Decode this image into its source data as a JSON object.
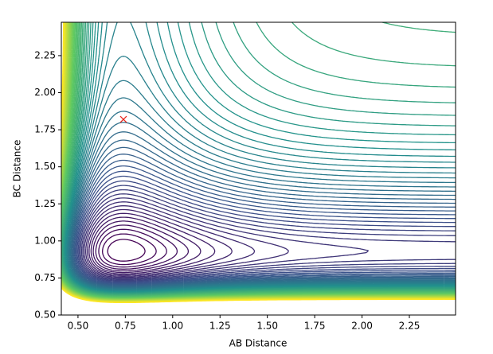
{
  "chart_data": {
    "type": "contour",
    "x_label": "AB Distance",
    "y_label": "BC Distance",
    "xlim": [
      0.412,
      2.494
    ],
    "ylim": [
      0.5,
      2.475
    ],
    "xticks": [
      {
        "value": 0.5,
        "label": "0.50"
      },
      0.75,
      {
        "value": 1.0,
        "label": "1.00"
      },
      1.25,
      {
        "value": 1.5,
        "label": "1.50"
      },
      1.75,
      {
        "value": 2.0,
        "label": "2.00"
      },
      2.25
    ],
    "yticks": [
      {
        "value": 0.5,
        "label": "0.50"
      },
      0.75,
      {
        "value": 1.0,
        "label": "1.00"
      },
      1.25,
      {
        "value": 1.5,
        "label": "1.50"
      },
      1.75,
      {
        "value": 2.0,
        "label": "2.00"
      },
      2.25
    ],
    "points": {
      "x": [
        0.74
      ],
      "y": [
        1.82
      ],
      "color": "#e8281e"
    }
  }
}
